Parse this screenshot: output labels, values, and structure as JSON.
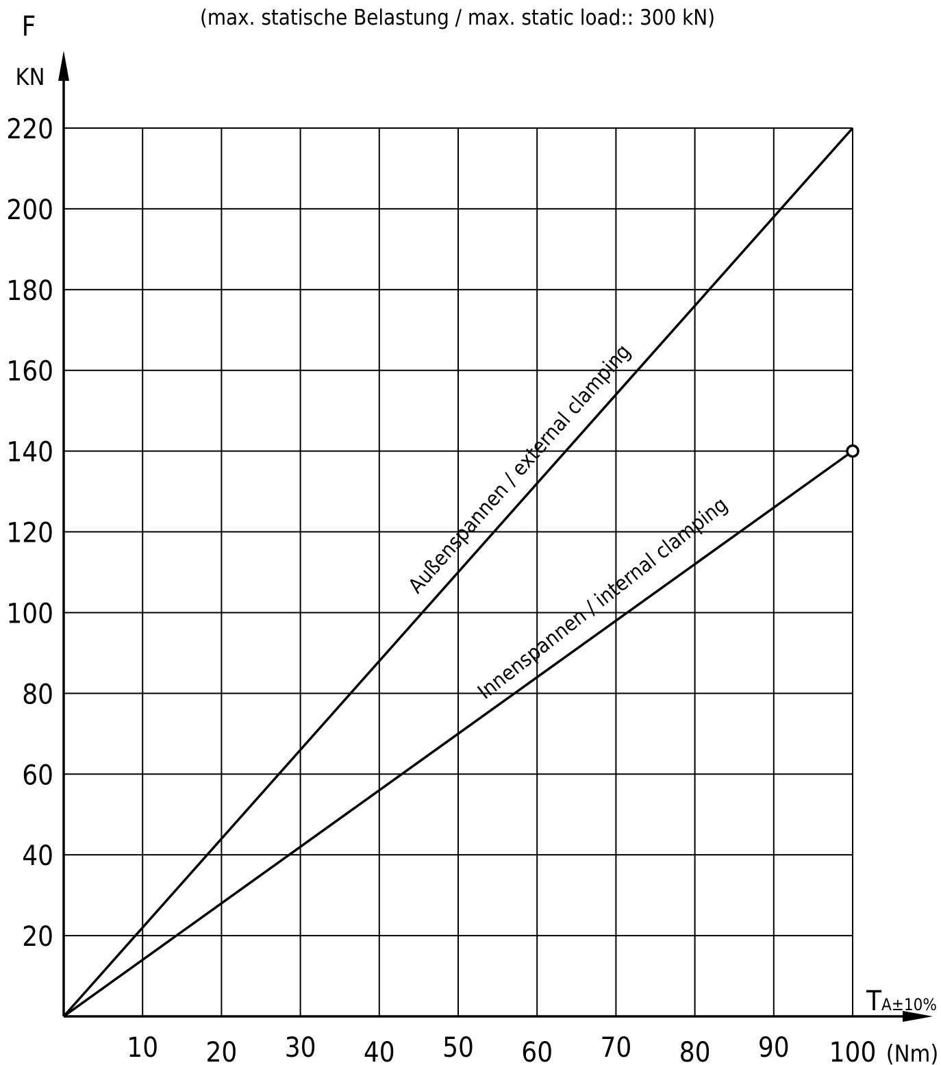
{
  "chart_data": {
    "type": "line",
    "title": "(max. statische Belastung / max. static load:: 300 kN)",
    "y_axis": {
      "name": "F",
      "unit": "KN",
      "ticks": [
        20,
        40,
        60,
        80,
        100,
        120,
        140,
        160,
        180,
        200,
        220
      ],
      "range": [
        0,
        220
      ]
    },
    "x_axis": {
      "name": "T",
      "subscript": "A±10%",
      "unit": "(Nm)",
      "ticks": [
        10,
        20,
        30,
        40,
        50,
        60,
        70,
        80,
        90,
        100
      ],
      "range": [
        0,
        100
      ]
    },
    "grid": true,
    "series": [
      {
        "name": "Außenspannen / external clamping",
        "x": [
          0,
          100
        ],
        "y": [
          0,
          220
        ]
      },
      {
        "name": "Innenspannen / internal clamping",
        "x": [
          0,
          100
        ],
        "y": [
          0,
          140
        ],
        "end_marker": "circle"
      }
    ]
  }
}
